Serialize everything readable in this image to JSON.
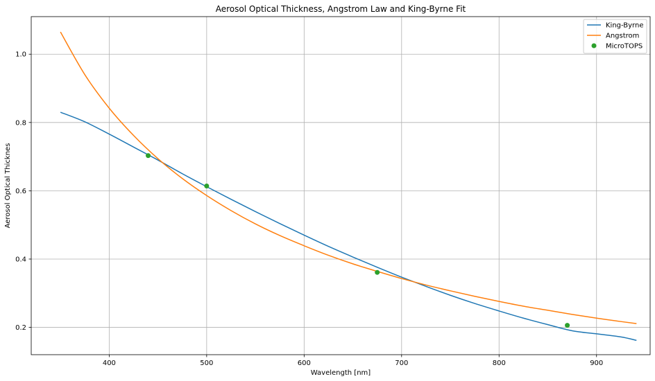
{
  "chart_data": {
    "type": "line",
    "title": "Aerosol Optical Thickness, Angstrom Law and King-Byrne Fit",
    "xlabel": "Wavelength [nm]",
    "ylabel": "Aerosol Optical Thicknes",
    "xlim": [
      320,
      955
    ],
    "ylim": [
      0.12,
      1.11
    ],
    "x_ticks": [
      400,
      500,
      600,
      700,
      800,
      900
    ],
    "y_ticks": [
      0.2,
      0.4,
      0.6,
      0.8,
      1.0
    ],
    "x_tick_labels": [
      "400",
      "500",
      "600",
      "700",
      "800",
      "900"
    ],
    "y_tick_labels": [
      "0.2",
      "0.4",
      "0.6",
      "0.8",
      "1.0"
    ],
    "grid": true,
    "legend_position": "top-right",
    "series": [
      {
        "name": "King-Byrne",
        "kind": "line",
        "color": "#1f77b4",
        "x": [
          350,
          375,
          400,
          425,
          450,
          475,
          500,
          525,
          550,
          575,
          600,
          625,
          650,
          675,
          700,
          725,
          750,
          775,
          800,
          825,
          850,
          875,
          900,
          925,
          941
        ],
        "y": [
          0.83,
          0.802,
          0.766,
          0.728,
          0.69,
          0.65,
          0.612,
          0.575,
          0.539,
          0.504,
          0.47,
          0.437,
          0.406,
          0.376,
          0.347,
          0.32,
          0.294,
          0.27,
          0.248,
          0.227,
          0.208,
          0.19,
          0.181,
          0.172,
          0.162
        ]
      },
      {
        "name": "Angstrom",
        "kind": "line",
        "color": "#ff7f0e",
        "x": [
          350,
          375,
          400,
          425,
          450,
          475,
          500,
          525,
          550,
          575,
          600,
          625,
          650,
          675,
          700,
          725,
          750,
          775,
          800,
          825,
          850,
          875,
          900,
          925,
          941
        ],
        "y": [
          1.065,
          0.94,
          0.842,
          0.762,
          0.694,
          0.636,
          0.586,
          0.542,
          0.503,
          0.469,
          0.439,
          0.411,
          0.386,
          0.364,
          0.343,
          0.324,
          0.307,
          0.291,
          0.276,
          0.262,
          0.25,
          0.238,
          0.227,
          0.217,
          0.211
        ]
      },
      {
        "name": "MicroTOPS",
        "kind": "scatter",
        "color": "#2ca02c",
        "x": [
          440,
          500,
          675,
          870
        ],
        "y": [
          0.703,
          0.614,
          0.361,
          0.206
        ]
      }
    ]
  }
}
